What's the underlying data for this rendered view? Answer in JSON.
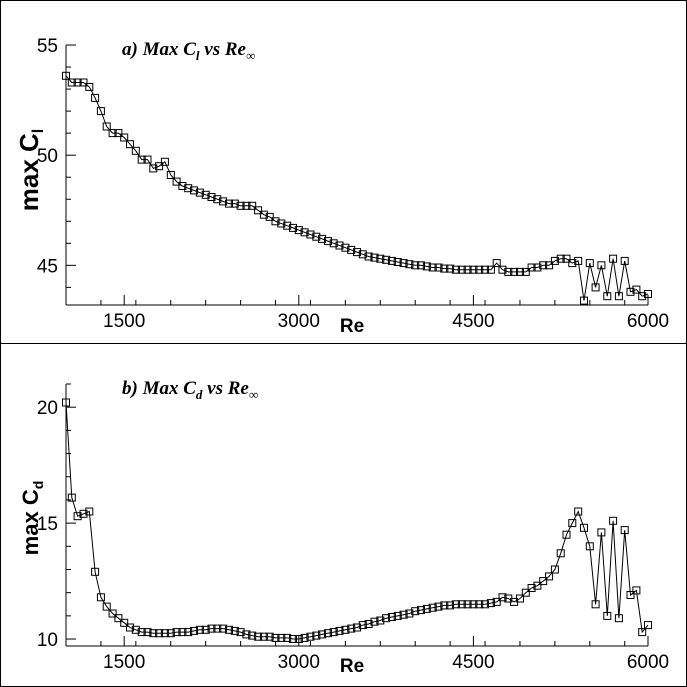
{
  "chart_data": [
    {
      "type": "line",
      "title": {
        "text": "a) Max C",
        "sub": "l",
        "rest": " vs Re",
        "rest_sub": "∞"
      },
      "xlabel": "Re",
      "ylabel": {
        "text": "max C",
        "sub": "l"
      },
      "xlim": [
        1000,
        6000
      ],
      "ylim": [
        43.2,
        55
      ],
      "xticks": [
        1500,
        3000,
        4500,
        6000
      ],
      "yticks": [
        45,
        50,
        55
      ],
      "grid": false,
      "series": [
        {
          "marker": "square",
          "x": [
            1000,
            1050,
            1100,
            1150,
            1200,
            1250,
            1300,
            1350,
            1400,
            1450,
            1500,
            1550,
            1600,
            1650,
            1700,
            1750,
            1800,
            1850,
            1900,
            1950,
            2000,
            2050,
            2100,
            2150,
            2200,
            2250,
            2300,
            2350,
            2400,
            2450,
            2500,
            2550,
            2600,
            2650,
            2700,
            2750,
            2800,
            2850,
            2900,
            2950,
            3000,
            3050,
            3100,
            3150,
            3200,
            3250,
            3300,
            3350,
            3400,
            3450,
            3500,
            3550,
            3600,
            3650,
            3700,
            3750,
            3800,
            3850,
            3900,
            3950,
            4000,
            4050,
            4100,
            4150,
            4200,
            4250,
            4300,
            4350,
            4400,
            4450,
            4500,
            4550,
            4600,
            4650,
            4700,
            4750,
            4800,
            4850,
            4900,
            4950,
            5000,
            5050,
            5100,
            5150,
            5200,
            5250,
            5300,
            5350,
            5400,
            5450,
            5500,
            5550,
            5600,
            5650,
            5700,
            5750,
            5800,
            5850,
            5900,
            5950,
            6000
          ],
          "y": [
            53.6,
            53.3,
            53.3,
            53.3,
            53.1,
            52.6,
            52.0,
            51.3,
            51.0,
            51.0,
            50.8,
            50.5,
            50.2,
            49.8,
            49.8,
            49.4,
            49.5,
            49.7,
            49.1,
            48.8,
            48.6,
            48.5,
            48.4,
            48.3,
            48.2,
            48.1,
            48.0,
            47.9,
            47.8,
            47.8,
            47.7,
            47.7,
            47.7,
            47.5,
            47.3,
            47.2,
            47.0,
            46.9,
            46.8,
            46.7,
            46.6,
            46.5,
            46.4,
            46.3,
            46.2,
            46.1,
            46.0,
            45.9,
            45.8,
            45.7,
            45.6,
            45.5,
            45.4,
            45.35,
            45.3,
            45.25,
            45.2,
            45.15,
            45.1,
            45.05,
            45.0,
            45.0,
            44.95,
            44.9,
            44.9,
            44.85,
            44.85,
            44.8,
            44.8,
            44.8,
            44.8,
            44.8,
            44.8,
            44.8,
            45.1,
            44.8,
            44.7,
            44.7,
            44.7,
            44.7,
            44.9,
            44.9,
            45.0,
            45.0,
            45.2,
            45.3,
            45.3,
            45.1,
            45.2,
            43.4,
            45.1,
            44.0,
            45.0,
            43.6,
            45.3,
            43.6,
            45.2,
            43.8,
            43.9,
            43.6,
            43.7
          ]
        }
      ]
    },
    {
      "type": "line",
      "title": {
        "text": "b) Max C",
        "sub": "d",
        "rest": " vs Re",
        "rest_sub": "∞"
      },
      "xlabel": "Re",
      "ylabel": {
        "text": "max C",
        "sub": "d"
      },
      "xlim": [
        1000,
        6000
      ],
      "ylim": [
        9.7,
        21
      ],
      "xticks": [
        1500,
        3000,
        4500,
        6000
      ],
      "yticks": [
        10,
        15,
        20
      ],
      "grid": false,
      "series": [
        {
          "marker": "square",
          "x": [
            1000,
            1050,
            1100,
            1150,
            1200,
            1250,
            1300,
            1350,
            1400,
            1450,
            1500,
            1550,
            1600,
            1650,
            1700,
            1750,
            1800,
            1850,
            1900,
            1950,
            2000,
            2050,
            2100,
            2150,
            2200,
            2250,
            2300,
            2350,
            2400,
            2450,
            2500,
            2550,
            2600,
            2650,
            2700,
            2750,
            2800,
            2850,
            2900,
            2950,
            3000,
            3050,
            3100,
            3150,
            3200,
            3250,
            3300,
            3350,
            3400,
            3450,
            3500,
            3550,
            3600,
            3650,
            3700,
            3750,
            3800,
            3850,
            3900,
            3950,
            4000,
            4050,
            4100,
            4150,
            4200,
            4250,
            4300,
            4350,
            4400,
            4450,
            4500,
            4550,
            4600,
            4650,
            4700,
            4750,
            4800,
            4850,
            4900,
            4950,
            5000,
            5050,
            5100,
            5150,
            5200,
            5250,
            5300,
            5350,
            5400,
            5450,
            5500,
            5550,
            5600,
            5650,
            5700,
            5750,
            5800,
            5850,
            5900,
            5950,
            6000
          ],
          "y": [
            20.2,
            16.1,
            15.3,
            15.4,
            15.5,
            12.9,
            11.8,
            11.4,
            11.1,
            10.9,
            10.7,
            10.5,
            10.4,
            10.3,
            10.3,
            10.25,
            10.25,
            10.25,
            10.25,
            10.3,
            10.3,
            10.3,
            10.35,
            10.4,
            10.4,
            10.45,
            10.45,
            10.45,
            10.4,
            10.35,
            10.3,
            10.2,
            10.15,
            10.1,
            10.1,
            10.1,
            10.05,
            10.05,
            10.05,
            10.0,
            10.0,
            10.05,
            10.1,
            10.15,
            10.2,
            10.25,
            10.3,
            10.35,
            10.4,
            10.45,
            10.5,
            10.6,
            10.65,
            10.75,
            10.8,
            10.9,
            10.95,
            11.0,
            11.05,
            11.1,
            11.2,
            11.25,
            11.3,
            11.35,
            11.4,
            11.45,
            11.45,
            11.5,
            11.5,
            11.5,
            11.5,
            11.5,
            11.5,
            11.55,
            11.6,
            11.8,
            11.75,
            11.6,
            11.75,
            12.0,
            12.2,
            12.3,
            12.5,
            12.7,
            13.0,
            13.7,
            14.5,
            15.0,
            15.5,
            14.8,
            14.0,
            11.5,
            14.6,
            11.0,
            15.1,
            10.9,
            14.7,
            11.9,
            12.1,
            10.3,
            10.6
          ]
        }
      ]
    }
  ]
}
